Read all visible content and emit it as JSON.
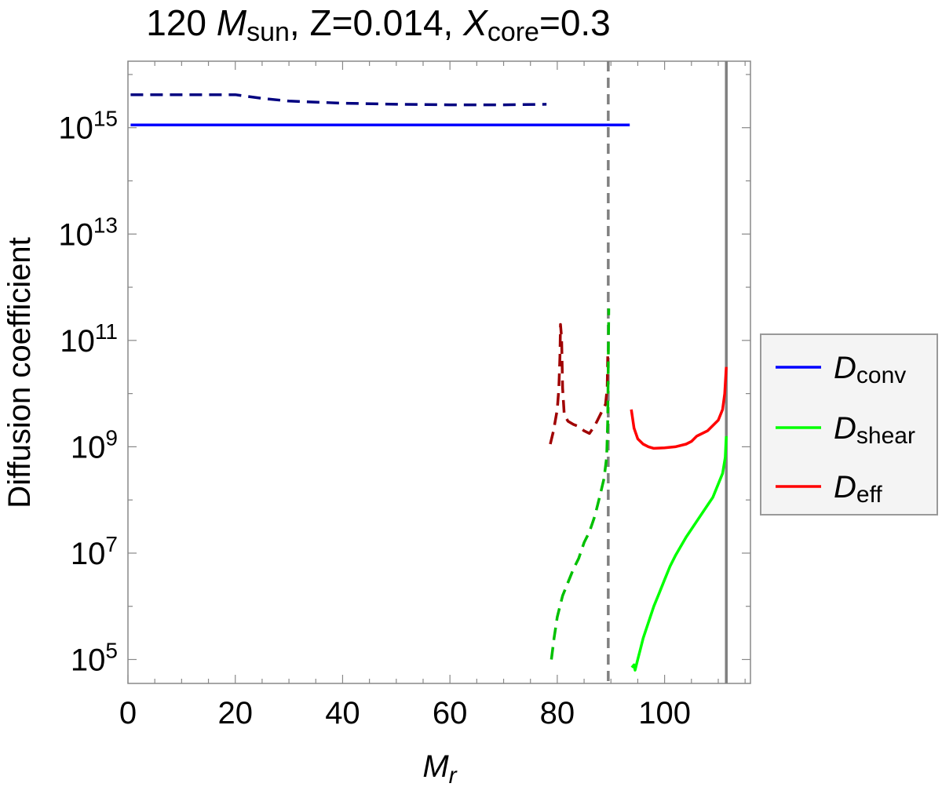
{
  "chart_data": {
    "type": "line",
    "title": {
      "prefix": "120 ",
      "mass_symbol": "M",
      "mass_sub": "sun",
      "metallicity": ", Z=0.014, ",
      "core_symbol": "X",
      "core_sub": "core",
      "core_value": "=0.3"
    },
    "xlabel": {
      "symbol": "M",
      "sub": "r"
    },
    "ylabel": "Diffusion coefficient",
    "xlim": [
      0,
      116
    ],
    "ylog": true,
    "ylim_log10": [
      4.55,
      16.25
    ],
    "x_ticks": [
      0,
      20,
      40,
      60,
      80,
      100
    ],
    "x_tick_labels": [
      "0",
      "20",
      "40",
      "60",
      "80",
      "100"
    ],
    "x_minor_step": 5,
    "y_ticks_log10": [
      5,
      7,
      9,
      11,
      13,
      15
    ],
    "y_tick_labels": [
      {
        "base": "10",
        "exp": "5"
      },
      {
        "base": "10",
        "exp": "7"
      },
      {
        "base": "10",
        "exp": "9"
      },
      {
        "base": "10",
        "exp": "11"
      },
      {
        "base": "10",
        "exp": "13"
      },
      {
        "base": "10",
        "exp": "15"
      }
    ],
    "y_minor_log10": [
      4,
      6,
      8,
      10,
      12,
      14,
      16
    ],
    "grid": false,
    "legend_position": "right",
    "legend": [
      {
        "symbol": "D",
        "sub": "conv",
        "color": "#0000ff"
      },
      {
        "symbol": "D",
        "sub": "shear",
        "color": "#00ff00"
      },
      {
        "symbol": "D",
        "sub": "eff",
        "color": "#ff0000"
      }
    ],
    "vertical_lines": [
      {
        "x": 89.5,
        "style": "dashed",
        "color": "#808080"
      },
      {
        "x": 111.5,
        "style": "solid",
        "color": "#808080"
      }
    ],
    "series": [
      {
        "id": "conv-dashed",
        "color": "#000080",
        "dashed": true,
        "points": [
          [
            0.5,
            15.62
          ],
          [
            5,
            15.62
          ],
          [
            10,
            15.62
          ],
          [
            15,
            15.62
          ],
          [
            20,
            15.62
          ],
          [
            25,
            15.55
          ],
          [
            30,
            15.5
          ],
          [
            40,
            15.46
          ],
          [
            50,
            15.44
          ],
          [
            60,
            15.43
          ],
          [
            70,
            15.43
          ],
          [
            78,
            15.44
          ]
        ]
      },
      {
        "id": "conv-solid",
        "color": "#0000ff",
        "dashed": false,
        "points": [
          [
            0.5,
            15.05
          ],
          [
            93.5,
            15.05
          ]
        ]
      },
      {
        "id": "eff-dashed",
        "color": "#a00000",
        "dashed": true,
        "points": [
          [
            78.7,
            9.05
          ],
          [
            79.3,
            9.3
          ],
          [
            80,
            9.7
          ],
          [
            80.3,
            10.1
          ],
          [
            80.5,
            10.7
          ],
          [
            80.6,
            11.3
          ],
          [
            80.8,
            11.05
          ],
          [
            81,
            10.1
          ],
          [
            81.3,
            9.6
          ],
          [
            82,
            9.48
          ],
          [
            83,
            9.42
          ],
          [
            84,
            9.38
          ],
          [
            85,
            9.3
          ],
          [
            86,
            9.25
          ],
          [
            87,
            9.4
          ],
          [
            88,
            9.6
          ],
          [
            89,
            9.8
          ],
          [
            89.3,
            10.1
          ],
          [
            89.4,
            10.7
          ]
        ]
      },
      {
        "id": "shear-dashed",
        "color": "#00c000",
        "dashed": true,
        "points": [
          [
            78.9,
            5.0
          ],
          [
            79.4,
            5.4
          ],
          [
            80,
            5.8
          ],
          [
            80.5,
            6.0
          ],
          [
            81,
            6.2
          ],
          [
            82,
            6.45
          ],
          [
            83,
            6.7
          ],
          [
            84,
            6.9
          ],
          [
            85,
            7.2
          ],
          [
            86,
            7.4
          ],
          [
            87,
            7.7
          ],
          [
            88,
            8.1
          ],
          [
            88.7,
            8.4
          ],
          [
            89.2,
            8.8
          ],
          [
            89.4,
            9.5
          ],
          [
            89.5,
            10.5
          ],
          [
            89.6,
            11.6
          ]
        ]
      },
      {
        "id": "eff-solid",
        "color": "#ff0000",
        "dashed": false,
        "points": [
          [
            93.8,
            9.7
          ],
          [
            94.3,
            9.35
          ],
          [
            95,
            9.15
          ],
          [
            96,
            9.05
          ],
          [
            97,
            9.0
          ],
          [
            98,
            8.97
          ],
          [
            100,
            8.98
          ],
          [
            102,
            9.0
          ],
          [
            104,
            9.05
          ],
          [
            105,
            9.1
          ],
          [
            106,
            9.2
          ],
          [
            108,
            9.3
          ],
          [
            110,
            9.5
          ],
          [
            110.8,
            9.7
          ],
          [
            111.2,
            10.0
          ],
          [
            111.5,
            10.5
          ]
        ]
      },
      {
        "id": "shear-solid",
        "color": "#00ff00",
        "dashed": false,
        "points": [
          [
            93.9,
            4.85
          ],
          [
            94.3,
            4.9
          ],
          [
            94.5,
            4.8
          ],
          [
            95,
            5.0
          ],
          [
            95.5,
            5.2
          ],
          [
            96,
            5.4
          ],
          [
            97,
            5.7
          ],
          [
            98,
            6.0
          ],
          [
            99,
            6.25
          ],
          [
            100,
            6.5
          ],
          [
            101,
            6.75
          ],
          [
            102,
            6.95
          ],
          [
            104,
            7.3
          ],
          [
            106,
            7.6
          ],
          [
            108,
            7.9
          ],
          [
            109,
            8.05
          ],
          [
            110,
            8.3
          ],
          [
            110.8,
            8.5
          ],
          [
            111.3,
            8.8
          ],
          [
            111.5,
            9.2
          ]
        ]
      }
    ]
  }
}
